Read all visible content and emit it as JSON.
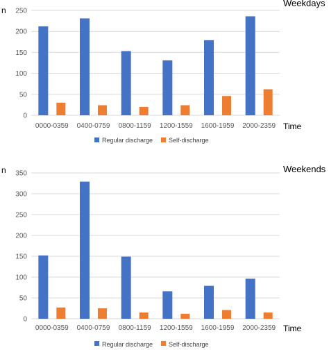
{
  "chart_data": [
    {
      "type": "bar",
      "title": "Weekdays",
      "ylabel": "n",
      "xlabel": "Time",
      "categories": [
        "0000-0359",
        "0400-0759",
        "0800-1159",
        "1200-1559",
        "1600-1959",
        "2000-2359"
      ],
      "series": [
        {
          "name": "Regular discharge",
          "values": [
            212,
            231,
            153,
            131,
            179,
            236
          ]
        },
        {
          "name": "Self-discharge",
          "values": [
            30,
            24,
            20,
            24,
            46,
            62
          ]
        }
      ],
      "ylim": [
        0,
        250
      ],
      "yticks": [
        0,
        50,
        100,
        150,
        200,
        250
      ],
      "grid": true,
      "legend": "bottom",
      "colors": [
        "#4472C4",
        "#ED7D31"
      ]
    },
    {
      "type": "bar",
      "title": "Weekends",
      "ylabel": "n",
      "xlabel": "Time",
      "categories": [
        "0000-0359",
        "0400-0759",
        "0800-1159",
        "1200-1559",
        "1600-1959",
        "2000-2359"
      ],
      "series": [
        {
          "name": "Regular discharge",
          "values": [
            152,
            329,
            149,
            66,
            79,
            96
          ]
        },
        {
          "name": "Self-discharge",
          "values": [
            27,
            25,
            15,
            12,
            21,
            15
          ]
        }
      ],
      "ylim": [
        0,
        350
      ],
      "yticks": [
        0,
        50,
        100,
        150,
        200,
        250,
        300,
        350
      ],
      "grid": true,
      "legend": "bottom",
      "colors": [
        "#4472C4",
        "#ED7D31"
      ]
    }
  ]
}
